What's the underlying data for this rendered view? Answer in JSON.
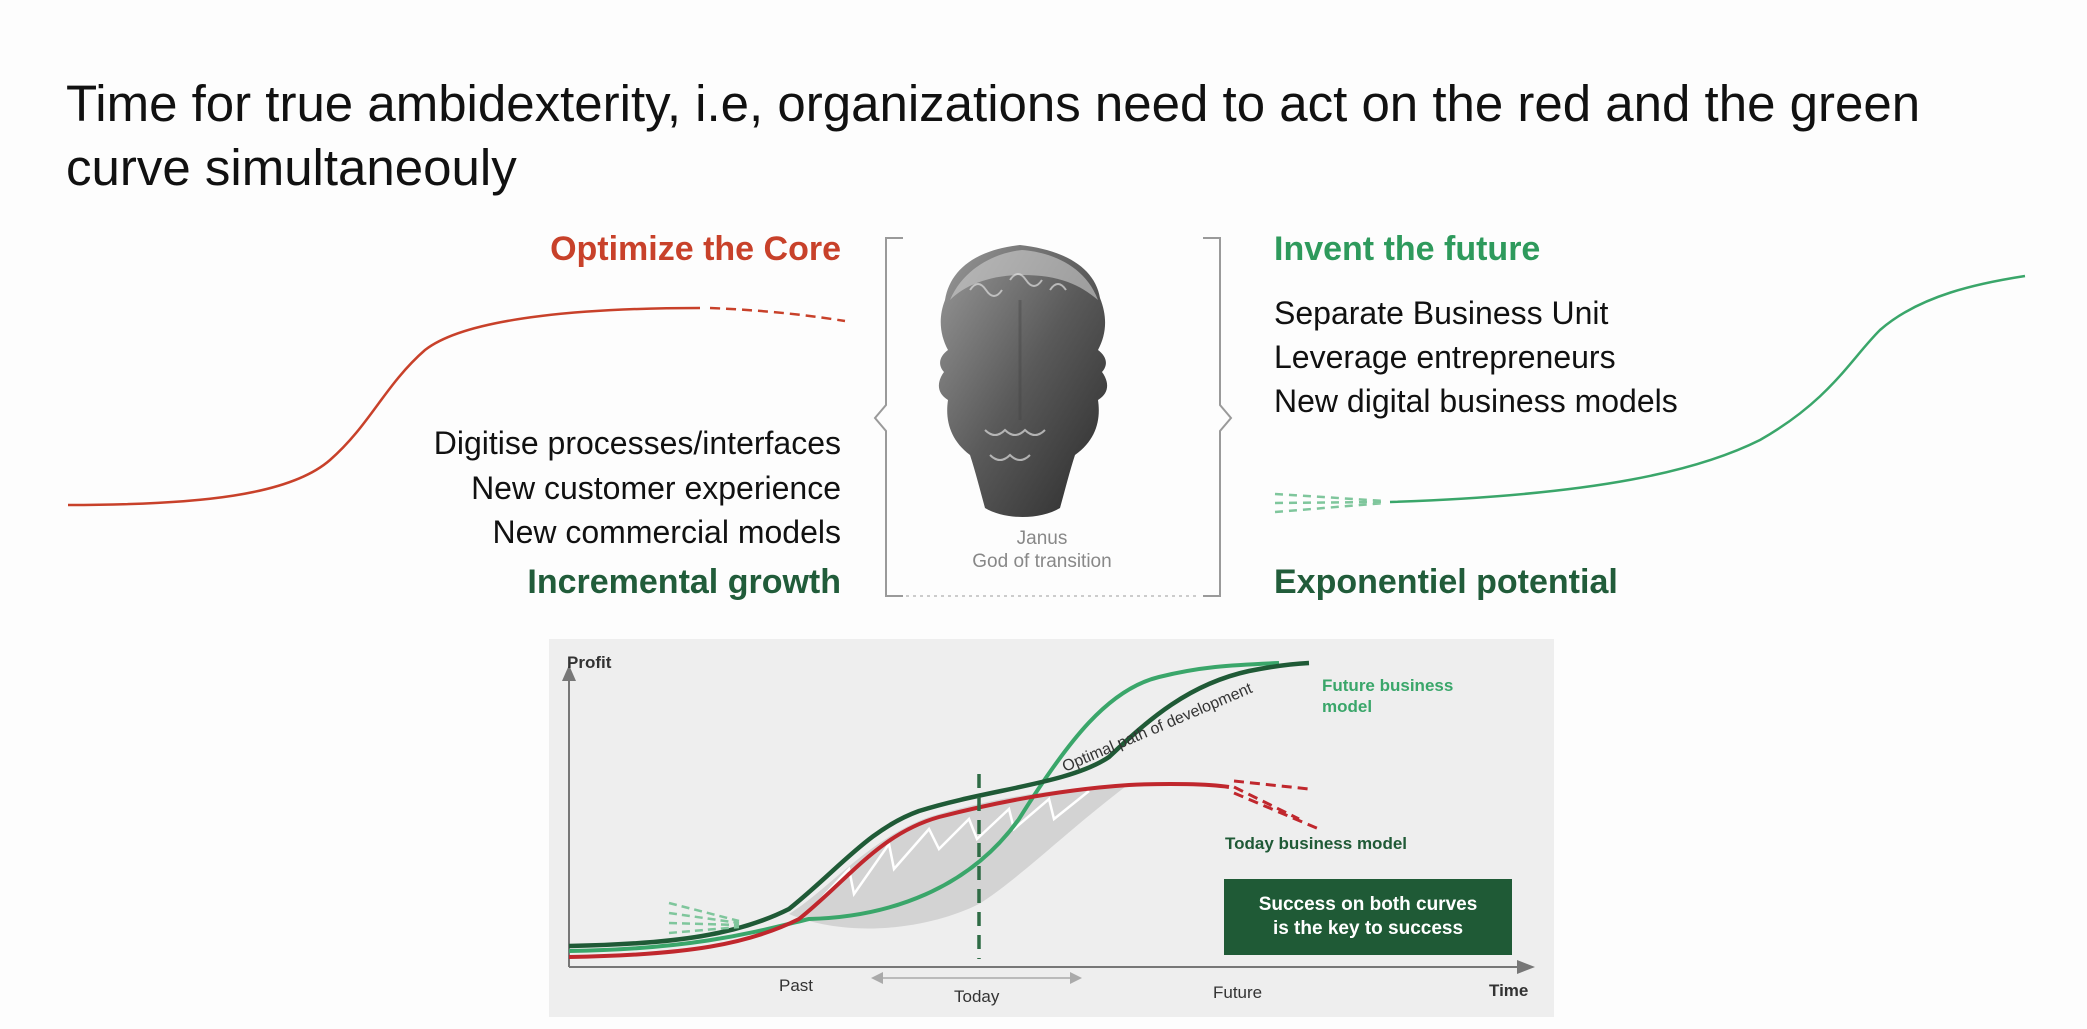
{
  "slide": {
    "title": "Time for true ambidexterity, i.e, organizations need to act on the red and the green curve simultaneouly"
  },
  "left": {
    "heading": "Optimize the Core",
    "items": [
      "Digitise processes/interfaces",
      "New customer experience",
      "New commercial models"
    ],
    "footer": "Incremental growth"
  },
  "right": {
    "heading": "Invent the future",
    "items": [
      "Separate Business Unit",
      "Leverage entrepreneurs",
      "New digital business models"
    ],
    "footer": "Exponentiel potential"
  },
  "janus": {
    "image": "janus-bust-icon",
    "caption_name": "Janus",
    "caption_role": "God of transition"
  },
  "chart": {
    "y_axis_label": "Profit",
    "x_axis_label": "Time",
    "x_ticks": [
      "Past",
      "Today",
      "Future"
    ],
    "labels": {
      "optimal_path": "Optimal path of development",
      "future_model_line1": "Future business",
      "future_model_line2": "model",
      "today_model": "Today business model"
    },
    "success_line1": "Success on both curves",
    "success_line2": "is the key to success"
  },
  "colors": {
    "red": "#c8412a",
    "green": "#2e9a5c",
    "dark_green": "#215c3a",
    "chart_red": "#c0272d",
    "chart_green": "#3aa66a",
    "chart_dark_green": "#1f5a36"
  }
}
